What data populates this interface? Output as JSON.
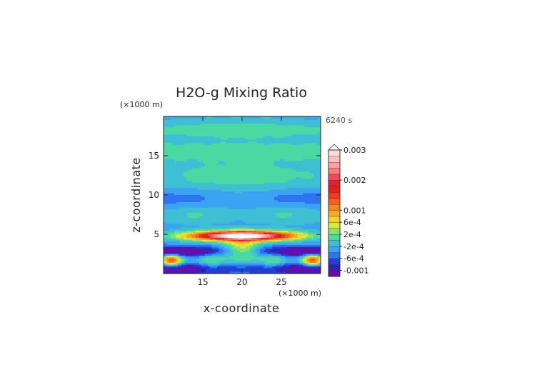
{
  "chart_data": {
    "type": "heatmap",
    "title": "H2O-g Mixing Ratio",
    "xlabel": "x-coordinate",
    "ylabel": "z-coordinate",
    "x_unit": "(×1000 m)",
    "y_unit": "(×1000 m)",
    "time_label": "6240 s",
    "xlim": [
      10,
      30
    ],
    "ylim": [
      0,
      20
    ],
    "x_ticks": [
      15,
      20,
      25
    ],
    "y_ticks": [
      5,
      10,
      15
    ],
    "colorbar": {
      "labels": [
        "0.003",
        "0.002",
        "0.001",
        "6e-4",
        "2e-4",
        "-2e-4",
        "-6e-4",
        "-0.001"
      ],
      "label_levels": [
        0.003,
        0.002,
        0.001,
        0.0006,
        0.0002,
        -0.0002,
        -0.0006,
        -0.001
      ],
      "levels": [
        -0.0012,
        -0.001,
        -0.0008,
        -0.0006,
        -0.0004,
        -0.0002,
        0,
        0.0002,
        0.0004,
        0.0006,
        0.0008,
        0.001,
        0.0012,
        0.0014,
        0.0016,
        0.0018,
        0.002,
        0.0022,
        0.0024,
        0.0026,
        0.0028,
        0.003
      ],
      "colors": [
        "#6a0dad",
        "#3a1fb8",
        "#1f3fd6",
        "#2f74ef",
        "#3aa3f2",
        "#3fbfd3",
        "#4ad9a3",
        "#86e36a",
        "#d9e93a",
        "#f2d32a",
        "#f7a82a",
        "#f7851f",
        "#f45f1f",
        "#ee3a1f",
        "#e51f1f",
        "#e21f33",
        "#f04c55",
        "#f57a80",
        "#f7a1a3",
        "#f8c2c2",
        "#fadcdc"
      ],
      "extend_max": true
    }
  }
}
